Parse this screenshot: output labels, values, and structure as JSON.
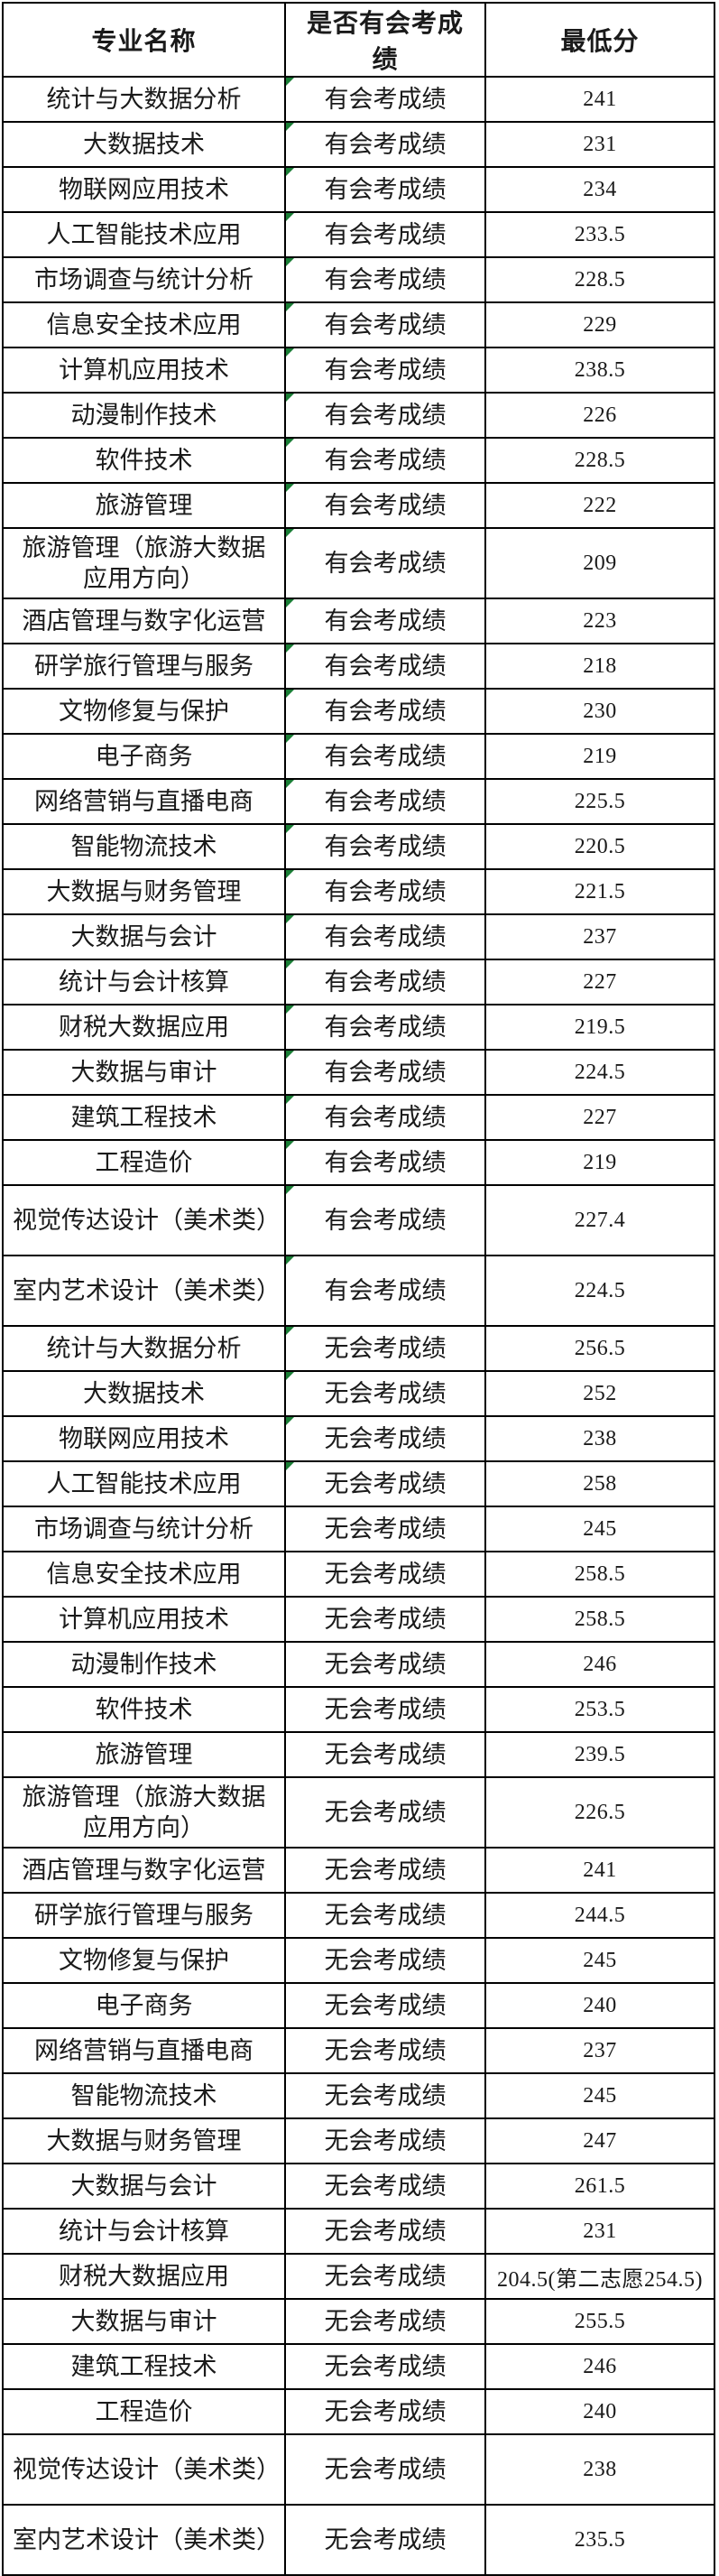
{
  "table": {
    "columns": [
      "专业名称",
      "是否有会考成绩",
      "最低分"
    ],
    "rows": [
      {
        "major": "统计与大数据分析",
        "exam": "有会考成绩",
        "score": "241",
        "flag": true,
        "tall": false
      },
      {
        "major": "大数据技术",
        "exam": "有会考成绩",
        "score": "231",
        "flag": true,
        "tall": false
      },
      {
        "major": "物联网应用技术",
        "exam": "有会考成绩",
        "score": "234",
        "flag": true,
        "tall": false
      },
      {
        "major": "人工智能技术应用",
        "exam": "有会考成绩",
        "score": "233.5",
        "flag": true,
        "tall": false
      },
      {
        "major": "市场调查与统计分析",
        "exam": "有会考成绩",
        "score": "228.5",
        "flag": true,
        "tall": false
      },
      {
        "major": "信息安全技术应用",
        "exam": "有会考成绩",
        "score": "229",
        "flag": true,
        "tall": false
      },
      {
        "major": "计算机应用技术",
        "exam": "有会考成绩",
        "score": "238.5",
        "flag": true,
        "tall": false
      },
      {
        "major": "动漫制作技术",
        "exam": "有会考成绩",
        "score": "226",
        "flag": true,
        "tall": false
      },
      {
        "major": "软件技术",
        "exam": "有会考成绩",
        "score": "228.5",
        "flag": true,
        "tall": false
      },
      {
        "major": "旅游管理",
        "exam": "有会考成绩",
        "score": "222",
        "flag": true,
        "tall": false
      },
      {
        "major": "旅游管理（旅游大数据应用方向）",
        "exam": "有会考成绩",
        "score": "209",
        "flag": true,
        "tall": true
      },
      {
        "major": "酒店管理与数字化运营",
        "exam": "有会考成绩",
        "score": "223",
        "flag": true,
        "tall": false
      },
      {
        "major": "研学旅行管理与服务",
        "exam": "有会考成绩",
        "score": "218",
        "flag": true,
        "tall": false
      },
      {
        "major": "文物修复与保护",
        "exam": "有会考成绩",
        "score": "230",
        "flag": true,
        "tall": false
      },
      {
        "major": "电子商务",
        "exam": "有会考成绩",
        "score": "219",
        "flag": true,
        "tall": false
      },
      {
        "major": "网络营销与直播电商",
        "exam": "有会考成绩",
        "score": "225.5",
        "flag": true,
        "tall": false
      },
      {
        "major": "智能物流技术",
        "exam": "有会考成绩",
        "score": "220.5",
        "flag": true,
        "tall": false
      },
      {
        "major": "大数据与财务管理",
        "exam": "有会考成绩",
        "score": "221.5",
        "flag": true,
        "tall": false
      },
      {
        "major": "大数据与会计",
        "exam": "有会考成绩",
        "score": "237",
        "flag": true,
        "tall": false
      },
      {
        "major": "统计与会计核算",
        "exam": "有会考成绩",
        "score": "227",
        "flag": true,
        "tall": false
      },
      {
        "major": "财税大数据应用",
        "exam": "有会考成绩",
        "score": "219.5",
        "flag": true,
        "tall": false
      },
      {
        "major": "大数据与审计",
        "exam": "有会考成绩",
        "score": "224.5",
        "flag": true,
        "tall": false
      },
      {
        "major": "建筑工程技术",
        "exam": "有会考成绩",
        "score": "227",
        "flag": true,
        "tall": false
      },
      {
        "major": "工程造价",
        "exam": "有会考成绩",
        "score": "219",
        "flag": true,
        "tall": false
      },
      {
        "major": "视觉传达设计（美术类）",
        "exam": "有会考成绩",
        "score": "227.4",
        "flag": true,
        "tall": true
      },
      {
        "major": "室内艺术设计（美术类）",
        "exam": "有会考成绩",
        "score": "224.5",
        "flag": true,
        "tall": true
      },
      {
        "major": "统计与大数据分析",
        "exam": "无会考成绩",
        "score": "256.5",
        "flag": true,
        "tall": false
      },
      {
        "major": "大数据技术",
        "exam": "无会考成绩",
        "score": "252",
        "flag": true,
        "tall": false
      },
      {
        "major": "物联网应用技术",
        "exam": "无会考成绩",
        "score": "238",
        "flag": true,
        "tall": false
      },
      {
        "major": "人工智能技术应用",
        "exam": "无会考成绩",
        "score": "258",
        "flag": true,
        "tall": false
      },
      {
        "major": "市场调查与统计分析",
        "exam": "无会考成绩",
        "score": "245",
        "flag": false,
        "tall": false
      },
      {
        "major": "信息安全技术应用",
        "exam": "无会考成绩",
        "score": "258.5",
        "flag": false,
        "tall": false
      },
      {
        "major": "计算机应用技术",
        "exam": "无会考成绩",
        "score": "258.5",
        "flag": false,
        "tall": false
      },
      {
        "major": "动漫制作技术",
        "exam": "无会考成绩",
        "score": "246",
        "flag": false,
        "tall": false
      },
      {
        "major": "软件技术",
        "exam": "无会考成绩",
        "score": "253.5",
        "flag": false,
        "tall": false
      },
      {
        "major": "旅游管理",
        "exam": "无会考成绩",
        "score": "239.5",
        "flag": false,
        "tall": false
      },
      {
        "major": "旅游管理（旅游大数据应用方向）",
        "exam": "无会考成绩",
        "score": "226.5",
        "flag": false,
        "tall": true
      },
      {
        "major": "酒店管理与数字化运营",
        "exam": "无会考成绩",
        "score": "241",
        "flag": false,
        "tall": false
      },
      {
        "major": "研学旅行管理与服务",
        "exam": "无会考成绩",
        "score": "244.5",
        "flag": false,
        "tall": false
      },
      {
        "major": "文物修复与保护",
        "exam": "无会考成绩",
        "score": "245",
        "flag": false,
        "tall": false
      },
      {
        "major": "电子商务",
        "exam": "无会考成绩",
        "score": "240",
        "flag": false,
        "tall": false
      },
      {
        "major": "网络营销与直播电商",
        "exam": "无会考成绩",
        "score": "237",
        "flag": false,
        "tall": false
      },
      {
        "major": "智能物流技术",
        "exam": "无会考成绩",
        "score": "245",
        "flag": false,
        "tall": false
      },
      {
        "major": "大数据与财务管理",
        "exam": "无会考成绩",
        "score": "247",
        "flag": false,
        "tall": false
      },
      {
        "major": "大数据与会计",
        "exam": "无会考成绩",
        "score": "261.5",
        "flag": false,
        "tall": false
      },
      {
        "major": "统计与会计核算",
        "exam": "无会考成绩",
        "score": "231",
        "flag": false,
        "tall": false
      },
      {
        "major": "财税大数据应用",
        "exam": "无会考成绩",
        "score": "204.5(第二志愿254.5)",
        "flag": false,
        "tall": false
      },
      {
        "major": "大数据与审计",
        "exam": "无会考成绩",
        "score": "255.5",
        "flag": false,
        "tall": false
      },
      {
        "major": "建筑工程技术",
        "exam": "无会考成绩",
        "score": "246",
        "flag": false,
        "tall": false
      },
      {
        "major": "工程造价",
        "exam": "无会考成绩",
        "score": "240",
        "flag": false,
        "tall": false
      },
      {
        "major": "视觉传达设计（美术类）",
        "exam": "无会考成绩",
        "score": "238",
        "flag": false,
        "tall": true
      },
      {
        "major": "室内艺术设计（美术类）",
        "exam": "无会考成绩",
        "score": "235.5",
        "flag": false,
        "tall": true
      }
    ]
  },
  "colors": {
    "background": "#ffffff",
    "border": "#000000",
    "text": "#1a1a1a",
    "triangle_green": "#1a7e36"
  }
}
